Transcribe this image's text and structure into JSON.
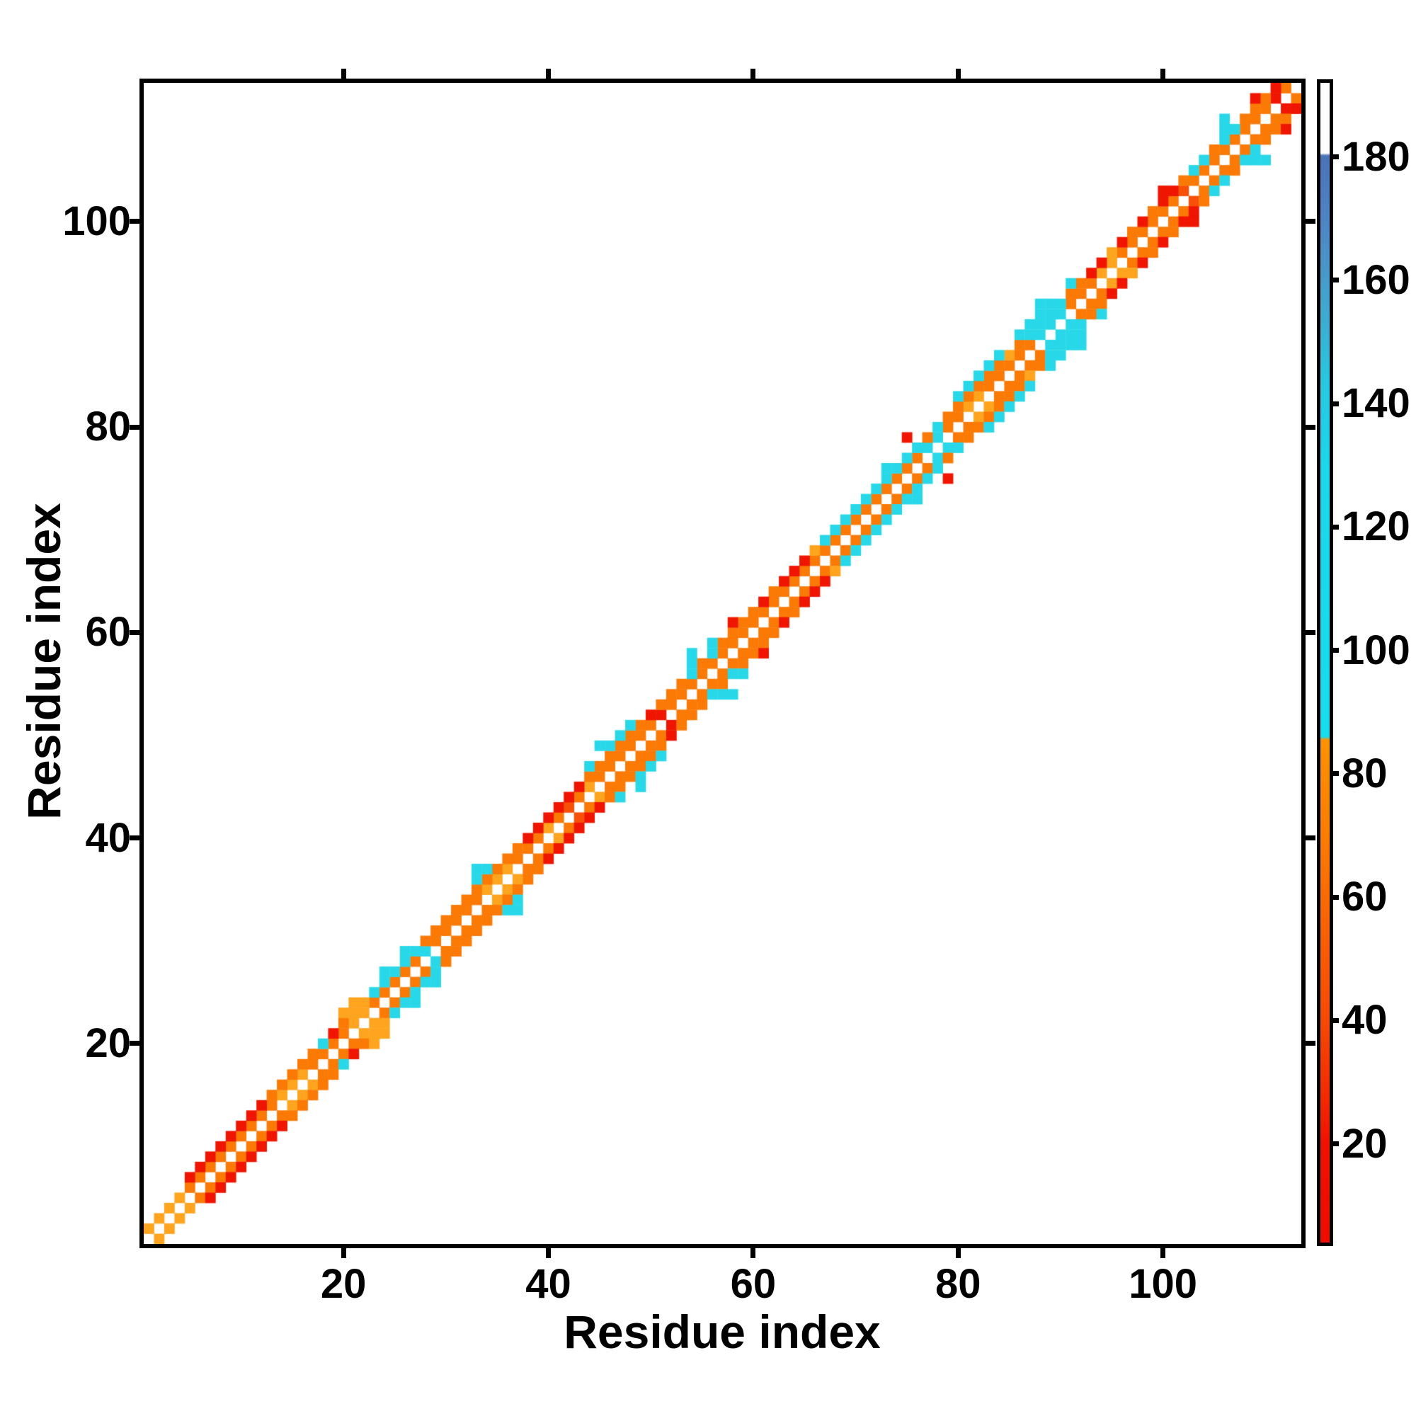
{
  "figure": {
    "x_axis_title": "Residue index",
    "y_axis_title": "Residue index"
  },
  "axes": {
    "x": {
      "label": "Residue index",
      "ticks": [
        20,
        40,
        60,
        80,
        100
      ],
      "range": [
        0.5,
        113.5
      ]
    },
    "y": {
      "label": "Residue index",
      "ticks": [
        20,
        40,
        60,
        80,
        100
      ],
      "range": [
        0.5,
        113.5
      ]
    }
  },
  "colorbar": {
    "ticks": [
      20,
      40,
      60,
      80,
      100,
      120,
      140,
      160,
      180
    ],
    "value_range": [
      4,
      192
    ],
    "stops": [
      {
        "v": 192,
        "c": "#ffffff"
      },
      {
        "v": 180.6,
        "c": "#ffffff"
      },
      {
        "v": 180.2,
        "c": "#4a73b8"
      },
      {
        "v": 168,
        "c": "#4e88c4"
      },
      {
        "v": 155,
        "c": "#41a8cf"
      },
      {
        "v": 143,
        "c": "#28c8e0"
      },
      {
        "v": 130,
        "c": "#1cd6ea"
      },
      {
        "v": 86,
        "c": "#17dcee"
      },
      {
        "v": 85.5,
        "c": "#fc9203"
      },
      {
        "v": 70,
        "c": "#fa7d03"
      },
      {
        "v": 55,
        "c": "#f86205"
      },
      {
        "v": 40,
        "c": "#f54a06"
      },
      {
        "v": 28,
        "c": "#f22b03"
      },
      {
        "v": 20,
        "c": "#ee1200"
      },
      {
        "v": 4,
        "c": "#ef0b00"
      }
    ]
  },
  "chart_data": {
    "type": "heatmap",
    "title": "",
    "xlabel": "Residue index",
    "ylabel": "Residue index",
    "n_residues": 113,
    "symmetric": true,
    "background_color": "#ffffff",
    "diagonal_color": "#ffffff",
    "grid": false,
    "palette": {
      "a": "#ffa41e",
      "o": "#fb7905",
      "O": "#f85107",
      "r": "#ef1500",
      "c": "#29d8e8"
    },
    "band_offsets": [
      1,
      2,
      3,
      4
    ],
    "bands_run_length_encoded": {
      "d1": [
        [
          "a",
          4
        ],
        [
          "o",
          9
        ],
        [
          "a",
          3
        ],
        [
          "o",
          4
        ],
        [
          "a",
          2
        ],
        [
          "o",
          5
        ],
        [
          "c",
          1
        ],
        [
          "o",
          5
        ],
        [
          "a",
          3
        ],
        [
          "o",
          3
        ],
        [
          "a",
          1
        ],
        [
          "o",
          1
        ],
        [
          "O",
          1
        ],
        [
          "o",
          1
        ],
        [
          "a",
          1
        ],
        [
          "o",
          6
        ],
        [
          "r",
          1
        ],
        [
          "o",
          25
        ],
        [
          "c",
          2
        ],
        [
          "o",
          2
        ],
        [
          "a",
          2
        ],
        [
          "o",
          5
        ],
        [
          "c",
          3
        ],
        [
          "o",
          3
        ],
        [
          "a",
          2
        ],
        [
          "o",
          6
        ],
        [
          "O",
          1
        ],
        [
          "o",
          8
        ],
        [
          "r",
          1
        ],
        [
          "o",
          1
        ]
      ],
      "d2": [
        [
          ".",
          4
        ],
        [
          "r",
          8
        ],
        [
          "o",
          5
        ],
        [
          "c",
          1
        ],
        [
          "r",
          1
        ],
        [
          "o",
          1
        ],
        [
          "a",
          2
        ],
        [
          "c",
          5
        ],
        [
          "o",
          10
        ],
        [
          "r",
          6
        ],
        [
          "o",
          6
        ],
        [
          "r",
          1
        ],
        [
          "o",
          3
        ],
        [
          "c",
          1
        ],
        [
          "o",
          1
        ],
        [
          "c",
          1
        ],
        [
          "o",
          4
        ],
        [
          "r",
          1
        ],
        [
          "o",
          1
        ],
        [
          "r",
          3
        ],
        [
          "a",
          1
        ],
        [
          "c",
          10
        ],
        [
          "o",
          1
        ],
        [
          "c",
          1
        ],
        [
          "o",
          6
        ],
        [
          "a",
          1
        ],
        [
          "o",
          1
        ],
        [
          "c",
          4
        ],
        [
          "o",
          2
        ],
        [
          "r",
          2
        ],
        [
          "a",
          1
        ],
        [
          "r",
          1
        ],
        [
          "o",
          1
        ],
        [
          "r",
          1
        ],
        [
          "o",
          1
        ],
        [
          "r",
          2
        ],
        [
          "o",
          1
        ],
        [
          "c",
          2
        ],
        [
          "o",
          1
        ],
        [
          "c",
          2
        ],
        [
          "o",
          3
        ],
        [
          "r",
          1
        ]
      ],
      "d3": [
        [
          ".",
          19
        ],
        [
          "a",
          2
        ],
        [
          ".",
          2
        ],
        [
          "c",
          1
        ],
        [
          ".",
          1
        ],
        [
          "c",
          1
        ],
        [
          ".",
          6
        ],
        [
          "c",
          2
        ],
        [
          ".",
          9
        ],
        [
          "c",
          1
        ],
        [
          ".",
          1
        ],
        [
          "c",
          3
        ],
        [
          ".",
          5
        ],
        [
          "c",
          1
        ],
        [
          ".",
          1
        ],
        [
          "c",
          1
        ],
        [
          ".",
          1
        ],
        [
          "r",
          1
        ],
        [
          ".",
          14
        ],
        [
          "c",
          1
        ],
        [
          ".",
          6
        ],
        [
          "c",
          5
        ],
        [
          ".",
          1
        ],
        [
          "c",
          4
        ],
        [
          ".",
          1
        ],
        [
          "c",
          1
        ],
        [
          ".",
          8
        ],
        [
          "r",
          1
        ],
        [
          ".",
          5
        ],
        [
          "c",
          1
        ],
        [
          ".",
          2
        ],
        [
          "r",
          1
        ],
        [
          ".",
          1
        ]
      ],
      "d4": [
        [
          ".",
          32
        ],
        [
          "c",
          1
        ],
        [
          ".",
          11
        ],
        [
          "c",
          1
        ],
        [
          ".",
          8
        ],
        [
          "c",
          1
        ],
        [
          ".",
          20
        ],
        [
          "r",
          1
        ],
        [
          ".",
          12
        ],
        [
          "c",
          1
        ],
        [
          ".",
          17
        ],
        [
          "c",
          1
        ],
        [
          ".",
          3
        ]
      ]
    }
  }
}
